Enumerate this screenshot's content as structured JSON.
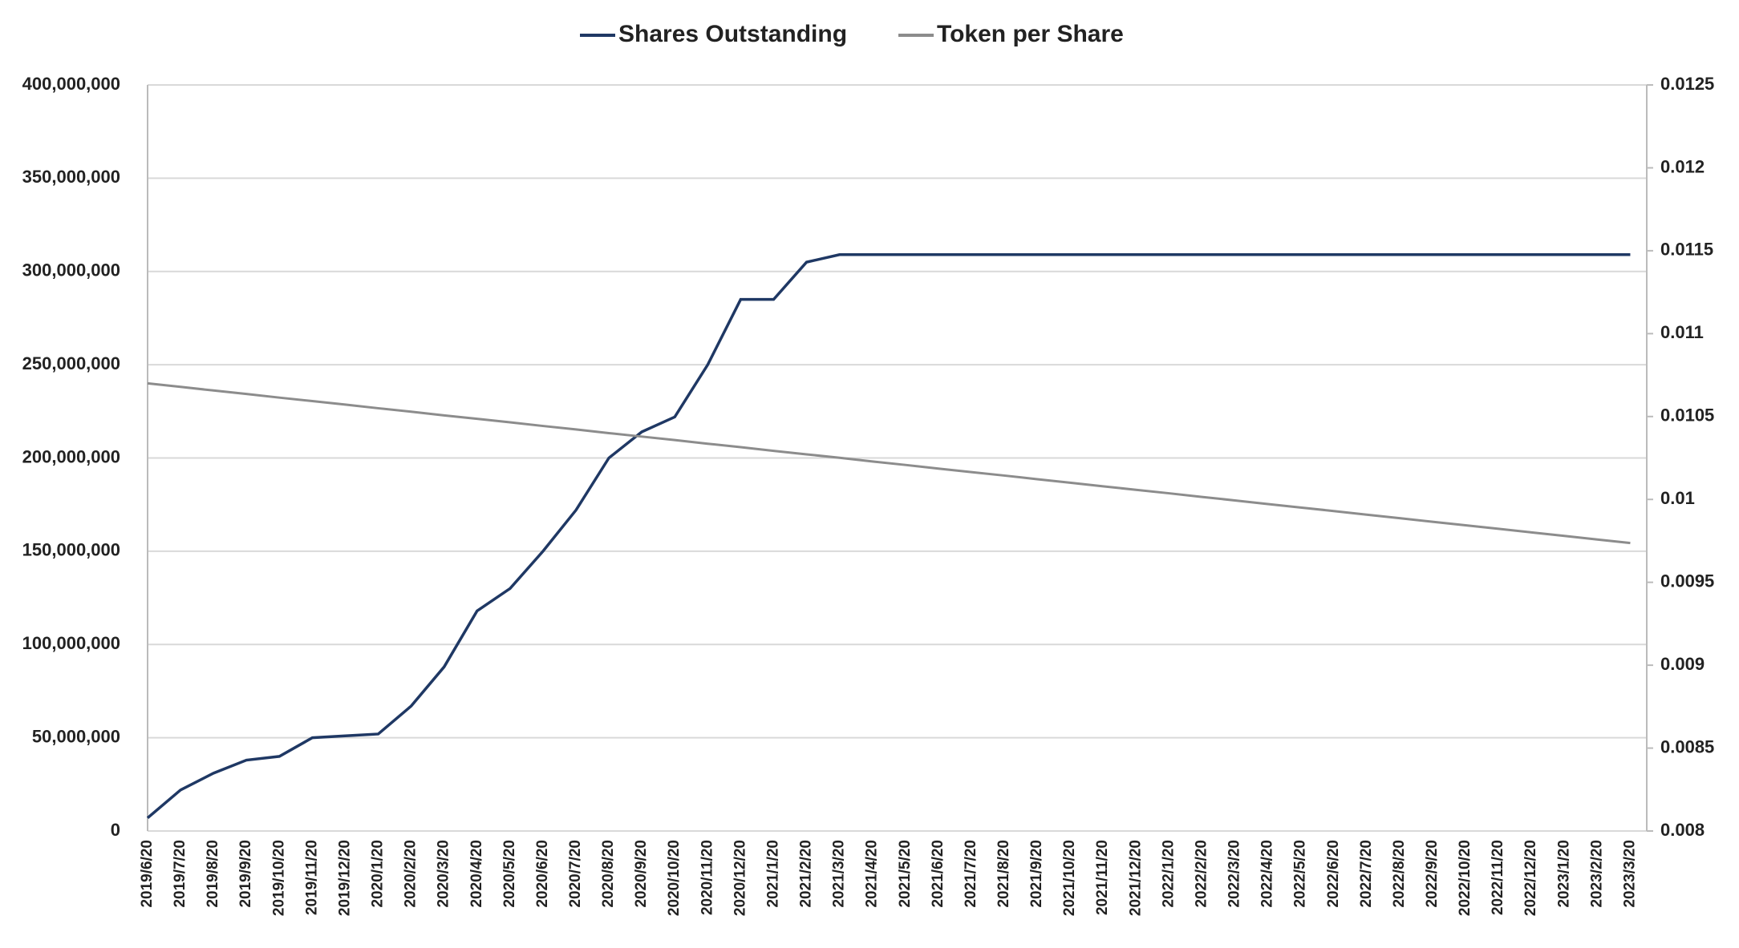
{
  "chart_data": {
    "type": "line",
    "categories": [
      "2019/6/20",
      "2019/7/20",
      "2019/8/20",
      "2019/9/20",
      "2019/10/20",
      "2019/11/20",
      "2019/12/20",
      "2020/1/20",
      "2020/2/20",
      "2020/3/20",
      "2020/4/20",
      "2020/5/20",
      "2020/6/20",
      "2020/7/20",
      "2020/8/20",
      "2020/9/20",
      "2020/10/20",
      "2020/11/20",
      "2020/12/20",
      "2021/1/20",
      "2021/2/20",
      "2021/3/20",
      "2021/4/20",
      "2021/5/20",
      "2021/6/20",
      "2021/7/20",
      "2021/8/20",
      "2021/9/20",
      "2021/10/20",
      "2021/11/20",
      "2021/12/20",
      "2022/1/20",
      "2022/2/20",
      "2022/3/20",
      "2022/4/20",
      "2022/5/20",
      "2022/6/20",
      "2022/7/20",
      "2022/8/20",
      "2022/9/20",
      "2022/10/20",
      "2022/11/20",
      "2022/12/20",
      "2023/1/20",
      "2023/2/20",
      "2023/3/20"
    ],
    "series": [
      {
        "name": "Shares Outstanding",
        "color": "#1f3864",
        "values": [
          7000000,
          22000000,
          31000000,
          38000000,
          40000000,
          50000000,
          51000000,
          52000000,
          67000000,
          88000000,
          118000000,
          130000000,
          150000000,
          172000000,
          200000000,
          214000000,
          222000000,
          250000000,
          285000000,
          285000000,
          305000000,
          309000000,
          309000000,
          309000000,
          309000000,
          309000000,
          309000000,
          309000000,
          309000000,
          309000000,
          309000000,
          309000000,
          309000000,
          309000000,
          309000000,
          309000000,
          309000000,
          309000000,
          309000000,
          309000000,
          309000000,
          309000000,
          309000000,
          309000000,
          309000000,
          309000000
        ]
      },
      {
        "name": "Token per Share",
        "color": "#8c8c8c",
        "axis": "y2",
        "values": [
          0.0107,
          0.010679,
          0.010657,
          0.010636,
          0.010614,
          0.010593,
          0.010572,
          0.01055,
          0.010529,
          0.010507,
          0.010486,
          0.010465,
          0.010443,
          0.010422,
          0.0104,
          0.010379,
          0.010358,
          0.010336,
          0.010315,
          0.010293,
          0.010272,
          0.010251,
          0.010229,
          0.010208,
          0.010186,
          0.010165,
          0.010144,
          0.010122,
          0.010101,
          0.010079,
          0.010058,
          0.010037,
          0.010015,
          0.009994,
          0.009972,
          0.009951,
          0.00993,
          0.009908,
          0.009887,
          0.009865,
          0.009844,
          0.009823,
          0.009801,
          0.00978,
          0.009758,
          0.009737
        ]
      }
    ],
    "ylim": [
      0,
      400000000
    ],
    "yticks": [
      0,
      {
        "value": 50000000,
        "label": "50,000,000"
      },
      {
        "value": 100000000,
        "label": "100,000,000"
      },
      {
        "value": 150000000,
        "label": "150,000,000"
      },
      {
        "value": 200000000,
        "label": "200,000,000"
      },
      {
        "value": 250000000,
        "label": "250,000,000"
      },
      {
        "value": 300000000,
        "label": "300,000,000"
      },
      {
        "value": 350000000,
        "label": "350,000,000"
      },
      {
        "value": 400000000,
        "label": "400,000,000"
      }
    ],
    "y2lim": [
      0.008,
      0.0125
    ],
    "y2ticks": [
      0.008,
      0.0085,
      0.009,
      0.0095,
      0.01,
      0.0105,
      0.011,
      0.0115,
      0.012,
      0.0125
    ],
    "grid": true,
    "legend": "top"
  }
}
